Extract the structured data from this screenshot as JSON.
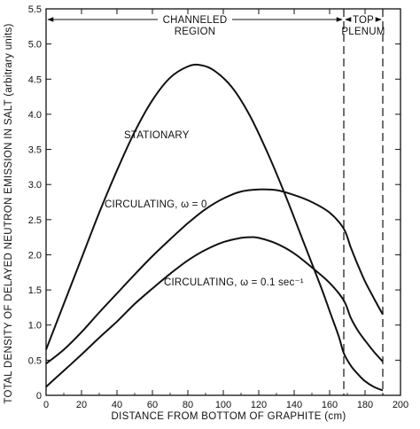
{
  "chart_data": {
    "type": "line",
    "xlabel": "DISTANCE FROM BOTTOM OF GRAPHITE (cm)",
    "ylabel": "TOTAL DENSITY OF DELAYED NEUTRON EMISSION IN SALT (arbitrary units)",
    "xlim": [
      0,
      200
    ],
    "ylim": [
      0,
      5.5
    ],
    "x_ticks": [
      "0",
      "20",
      "40",
      "60",
      "80",
      "100",
      "120",
      "140",
      "160",
      "180",
      "200"
    ],
    "y_ticks": [
      "0",
      "0.5",
      "1.0",
      "1.5",
      "2.0",
      "2.5",
      "3.0",
      "3.5",
      "4.0",
      "4.5",
      "5.0",
      "5.5"
    ],
    "grid": false,
    "regions": [
      {
        "label_lines": [
          "CHANNELED",
          "REGION"
        ],
        "x_start": 0,
        "x_end": 168
      },
      {
        "label_lines": [
          "TOP",
          "PLENUM"
        ],
        "x_start": 168,
        "x_end": 190
      }
    ],
    "series": [
      {
        "name": "STATIONARY",
        "label_lines": [
          "STATIONARY"
        ],
        "x": [
          0,
          10,
          20,
          30,
          40,
          50,
          60,
          70,
          80,
          87,
          95,
          105,
          115,
          125,
          135,
          145,
          155,
          160,
          165,
          168,
          172,
          176,
          180,
          185,
          190
        ],
        "y": [
          0.65,
          1.3,
          1.95,
          2.6,
          3.2,
          3.75,
          4.2,
          4.52,
          4.68,
          4.7,
          4.62,
          4.38,
          3.98,
          3.45,
          2.85,
          2.2,
          1.55,
          1.2,
          0.85,
          0.6,
          0.42,
          0.3,
          0.2,
          0.12,
          0.07
        ]
      },
      {
        "name": "CIRCULATING, ω = 0",
        "label_lines": [
          "CIRCULATING, ω = 0"
        ],
        "x": [
          0,
          10,
          20,
          30,
          40,
          50,
          60,
          70,
          80,
          90,
          100,
          110,
          120,
          130,
          140,
          150,
          160,
          168,
          172,
          176,
          180,
          185,
          190
        ],
        "y": [
          0.45,
          0.65,
          0.9,
          1.18,
          1.45,
          1.72,
          1.98,
          2.22,
          2.45,
          2.65,
          2.8,
          2.9,
          2.93,
          2.92,
          2.85,
          2.75,
          2.6,
          2.37,
          2.1,
          1.85,
          1.62,
          1.38,
          1.15
        ]
      },
      {
        "name": "CIRCULATING, ω = 0.1 sec⁻¹",
        "label_lines": [
          "CIRCULATING, ω = 0.1 sec⁻¹"
        ],
        "x": [
          0,
          10,
          20,
          30,
          40,
          50,
          60,
          70,
          80,
          90,
          100,
          110,
          115,
          120,
          130,
          140,
          150,
          160,
          168,
          172,
          176,
          180,
          185,
          190
        ],
        "y": [
          0.12,
          0.35,
          0.58,
          0.82,
          1.05,
          1.3,
          1.52,
          1.73,
          1.92,
          2.07,
          2.18,
          2.24,
          2.25,
          2.24,
          2.16,
          2.02,
          1.82,
          1.6,
          1.35,
          1.1,
          0.92,
          0.78,
          0.62,
          0.48
        ]
      }
    ]
  }
}
